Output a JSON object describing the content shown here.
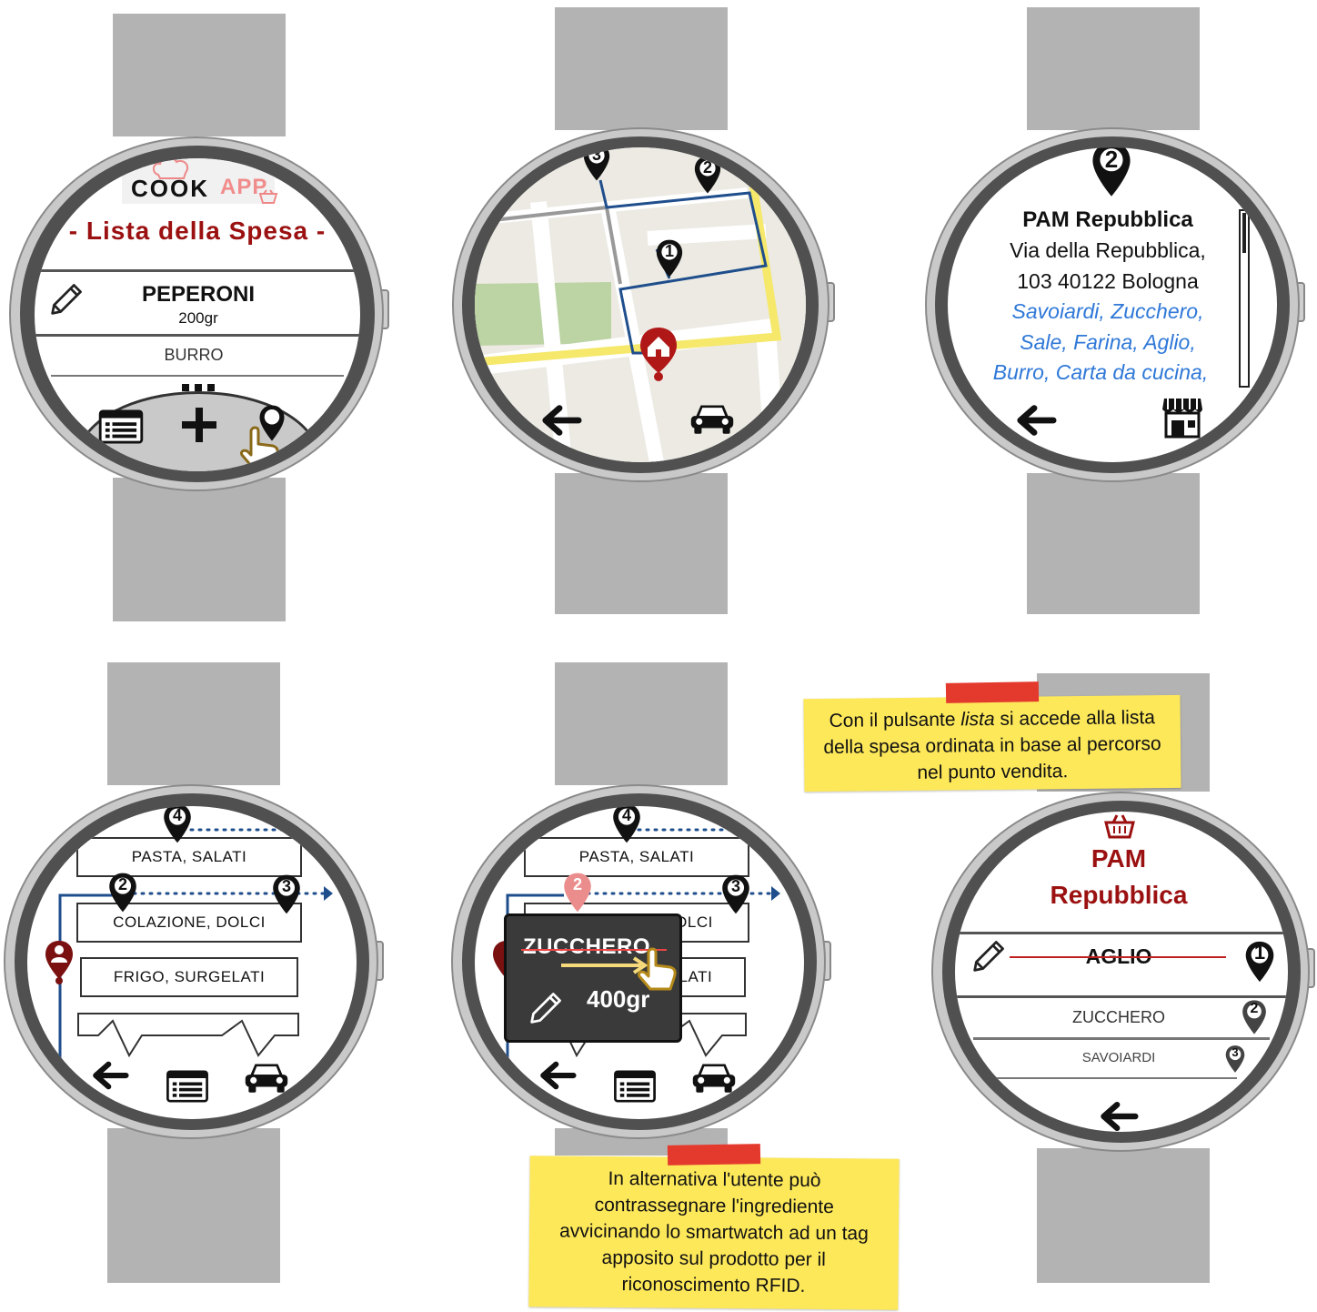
{
  "colors": {
    "brand_red": "#9b1010",
    "link_blue": "#2f78d8",
    "route_blue": "#1f4e8c",
    "note_yellow": "#fde85a",
    "tape_red": "#e43a2e",
    "band_gray": "#b3b3b3",
    "bezel_dark": "#505050"
  },
  "screen1": {
    "logo_word1": "COOK",
    "logo_word2": "APP",
    "title": "- Lista della Spesa -",
    "item_name": "PEPERONI",
    "item_qty": "200gr",
    "next_item": "BURRO",
    "icons": [
      "pencil-icon",
      "list-icon",
      "plus-icon",
      "more-dots-icon",
      "map-pin-icon",
      "tap-hand-icon"
    ]
  },
  "screen2": {
    "pins": [
      "1",
      "2",
      "3"
    ],
    "icons": [
      "home-pin-icon",
      "back-arrow-icon",
      "car-icon"
    ]
  },
  "screen3": {
    "pin_number": "2",
    "store_name": "PAM Repubblica",
    "address_line1": "Via della Repubblica,",
    "address_line2": "103 40122 Bologna",
    "products_line1": "Savoiardi, Zucchero,",
    "products_line2": "Sale, Farina, Aglio,",
    "products_line3": "Burro, Carta da cucina,",
    "icons": [
      "back-arrow-icon",
      "store-icon"
    ]
  },
  "screen4": {
    "aisles": [
      "PASTA, SALATI",
      "COLAZIONE, DOLCI",
      "FRIGO, SURGELATI"
    ],
    "pins": [
      "4",
      "2",
      "3"
    ],
    "icons": [
      "user-pin-icon",
      "back-arrow-icon",
      "list-icon",
      "car-icon"
    ]
  },
  "screen5": {
    "aisles": [
      "PASTA, SALATI",
      "COLAZIONE, DOLCI",
      "FRIGO, SURGELATI"
    ],
    "pins": [
      "4",
      "2",
      "3"
    ],
    "popup_item": "ZUCCHERO",
    "popup_qty": "400gr",
    "icons": [
      "pencil-icon",
      "swipe-hand-icon",
      "back-arrow-icon",
      "list-icon",
      "car-icon"
    ]
  },
  "screen6": {
    "store_line1": "PAM",
    "store_line2": "Repubblica",
    "items": [
      {
        "name": "AGLIO",
        "pin": "1",
        "done": true
      },
      {
        "name": "ZUCCHERO",
        "pin": "2",
        "done": false
      },
      {
        "name": "SAVOIARDI",
        "pin": "3",
        "done": false
      }
    ],
    "icons": [
      "basket-icon",
      "pencil-icon",
      "back-arrow-icon"
    ]
  },
  "note_top": {
    "text_before": "Con il pulsante ",
    "text_emph": "lista",
    "text_after": " si accede alla lista della spesa ordinata in base al percorso nel punto vendita."
  },
  "note_bottom": {
    "text": "In alternativa l'utente può contrassegnare l'ingrediente avvicinando lo smartwatch ad un tag apposito sul prodotto per il riconoscimento RFID."
  }
}
